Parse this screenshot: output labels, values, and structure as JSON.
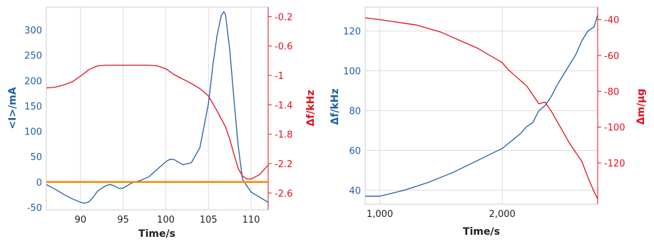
{
  "colors": {
    "blue": "#1f5fa6",
    "red": "#e3101f",
    "orange": "#f28c00",
    "grid": "#dddddd"
  },
  "chart_data": [
    {
      "type": "line",
      "xlabel": "Time/s",
      "ylabel_left": "<I>/mA",
      "ylabel_right": "Δf/kHz",
      "xlim": [
        86,
        112
      ],
      "ylim_left": [
        -55,
        345
      ],
      "ylim_right": [
        -2.83,
        -0.07
      ],
      "xticks": [
        90,
        95,
        100,
        105,
        110
      ],
      "yticks_left": [
        -50,
        0,
        50,
        100,
        150,
        200,
        250,
        300
      ],
      "yticks_right": [
        -0.2,
        -0.6,
        -1,
        -1.4,
        -1.8,
        -2.2,
        -2.6
      ],
      "xtick_labels": [
        "90",
        "95",
        "100",
        "105",
        "110"
      ],
      "ytick_labels_left": [
        "-50",
        "0",
        "50",
        "100",
        "150",
        "200",
        "250",
        "300"
      ],
      "ytick_labels_right": [
        "-0.2",
        "-0.6",
        "-1",
        "-1.4",
        "-1.8",
        "-2.2",
        "-2.6"
      ],
      "grid": "vertical",
      "series": [
        {
          "axis": "left",
          "color": "#1f5fa6",
          "x": [
            86,
            87,
            88,
            89,
            90,
            90.5,
            91,
            91.5,
            92,
            93,
            93.5,
            94,
            94.5,
            95,
            95.5,
            96,
            97,
            98,
            99,
            100,
            100.5,
            101,
            102,
            103,
            104,
            105,
            105.5,
            106,
            106.5,
            106.8,
            107,
            107.5,
            108,
            108.5,
            109,
            110,
            111,
            112
          ],
          "y": [
            -5,
            -14,
            -24,
            -33,
            -40,
            -42,
            -39,
            -30,
            -18,
            -7,
            -5,
            -8,
            -13,
            -12,
            -7,
            -2,
            3,
            10,
            25,
            40,
            45,
            44,
            34,
            38,
            68,
            155,
            228,
            288,
            328,
            336,
            330,
            260,
            160,
            70,
            5,
            -20,
            -30,
            -40
          ]
        },
        {
          "axis": "right",
          "color": "#e3101f",
          "x": [
            86,
            87,
            88,
            89,
            90,
            91,
            92,
            93,
            94,
            95,
            96,
            97,
            98,
            99,
            100,
            101,
            102,
            103,
            104,
            105,
            106,
            107,
            107.5,
            108,
            108.5,
            109,
            109.5,
            110,
            111,
            112
          ],
          "y": [
            -1.17,
            -1.16,
            -1.13,
            -1.09,
            -1.01,
            -0.92,
            -0.87,
            -0.86,
            -0.86,
            -0.86,
            -0.86,
            -0.86,
            -0.86,
            -0.87,
            -0.91,
            -0.99,
            -1.05,
            -1.11,
            -1.18,
            -1.28,
            -1.48,
            -1.7,
            -1.87,
            -2.08,
            -2.27,
            -2.37,
            -2.41,
            -2.41,
            -2.35,
            -2.22
          ]
        },
        {
          "axis": "left",
          "color": "#f28c00",
          "x": [
            86,
            112
          ],
          "y": [
            0,
            0
          ]
        }
      ]
    },
    {
      "type": "line",
      "xlabel": "Time/s",
      "ylabel_left": "Δf/kHz",
      "ylabel_right": "Δm/µg",
      "xlim": [
        880,
        2780
      ],
      "ylim_left": [
        33,
        132
      ],
      "ylim_right": [
        -143,
        -33
      ],
      "xticks": [
        1000,
        2000
      ],
      "yticks_left": [
        40,
        60,
        80,
        100,
        120
      ],
      "yticks_right": [
        -40,
        -60,
        -80,
        -100,
        -120
      ],
      "xtick_labels": [
        "1,000",
        "2,000"
      ],
      "ytick_labels_left": [
        "40",
        "60",
        "80",
        "100",
        "120"
      ],
      "ytick_labels_right": [
        "-40",
        "-60",
        "-80",
        "-100",
        "-120"
      ],
      "grid": "both",
      "series": [
        {
          "axis": "left",
          "color": "#1f5fa6",
          "x": [
            880,
            1000,
            1100,
            1200,
            1300,
            1400,
            1500,
            1600,
            1700,
            1800,
            1900,
            2000,
            2100,
            2150,
            2200,
            2250,
            2300,
            2350,
            2400,
            2450,
            2500,
            2550,
            2600,
            2650,
            2700,
            2750,
            2780
          ],
          "y": [
            37,
            37,
            38.5,
            40,
            42,
            44,
            46.5,
            49,
            52,
            55,
            58,
            61,
            66,
            68.5,
            72,
            74,
            80,
            82.5,
            87,
            93,
            98,
            103,
            108,
            115,
            120,
            122,
            128
          ]
        },
        {
          "axis": "right",
          "color": "#e3101f",
          "x": [
            880,
            1000,
            1100,
            1200,
            1300,
            1400,
            1500,
            1600,
            1700,
            1800,
            1900,
            2000,
            2050,
            2100,
            2150,
            2200,
            2250,
            2300,
            2350,
            2400,
            2450,
            2500,
            2550,
            2600,
            2650,
            2700,
            2750,
            2780
          ],
          "y": [
            -39,
            -40,
            -41,
            -42,
            -43,
            -45,
            -47,
            -50,
            -53,
            -56,
            -60,
            -64,
            -68,
            -71,
            -74,
            -77,
            -82,
            -87,
            -86,
            -91,
            -97,
            -103,
            -109,
            -114,
            -119,
            -128,
            -136,
            -140
          ]
        }
      ]
    }
  ]
}
